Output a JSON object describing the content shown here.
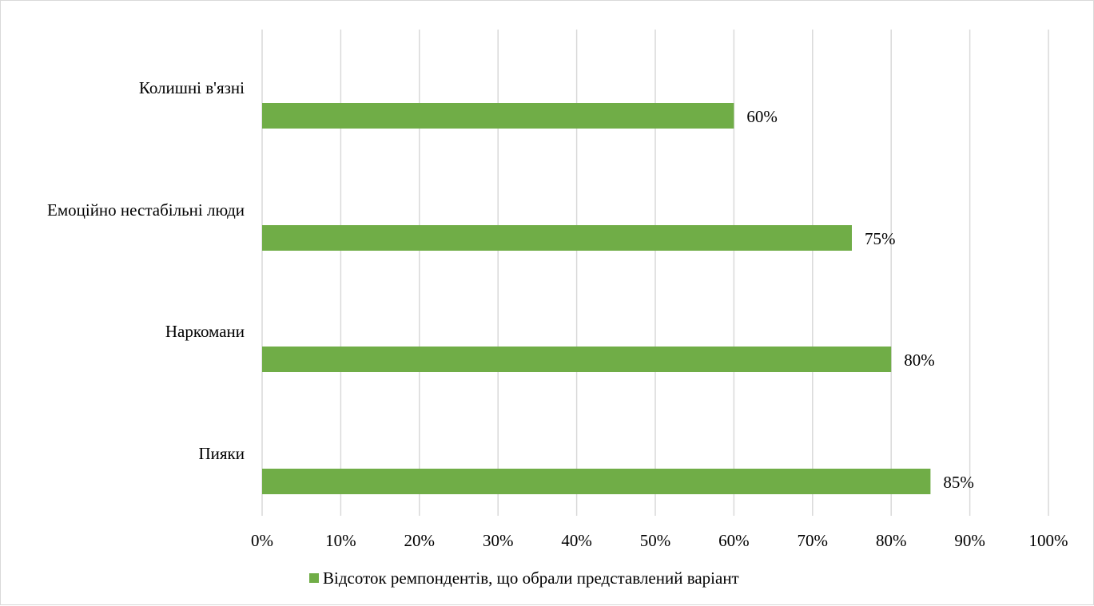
{
  "chart_data": {
    "type": "bar",
    "orientation": "horizontal",
    "categories": [
      "Пияки",
      "Наркомани",
      "Емоційно нестабільні люди",
      "Колишні в'язні"
    ],
    "series": [
      {
        "name": "Відсоток ремпондентів, що обрали представлений варіант",
        "values": [
          85,
          80,
          75,
          60
        ],
        "data_labels": [
          "85%",
          "80%",
          "75%",
          "60%"
        ],
        "color": "#70ad47"
      }
    ],
    "xlim": [
      0,
      100
    ],
    "x_ticks": [
      0,
      10,
      20,
      30,
      40,
      50,
      60,
      70,
      80,
      90,
      100
    ],
    "x_tick_labels": [
      "0%",
      "10%",
      "20%",
      "30%",
      "40%",
      "50%",
      "60%",
      "70%",
      "80%",
      "90%",
      "100%"
    ],
    "grid": "vertical",
    "gridline_color": "#d9d9d9",
    "legend_position": "bottom"
  }
}
